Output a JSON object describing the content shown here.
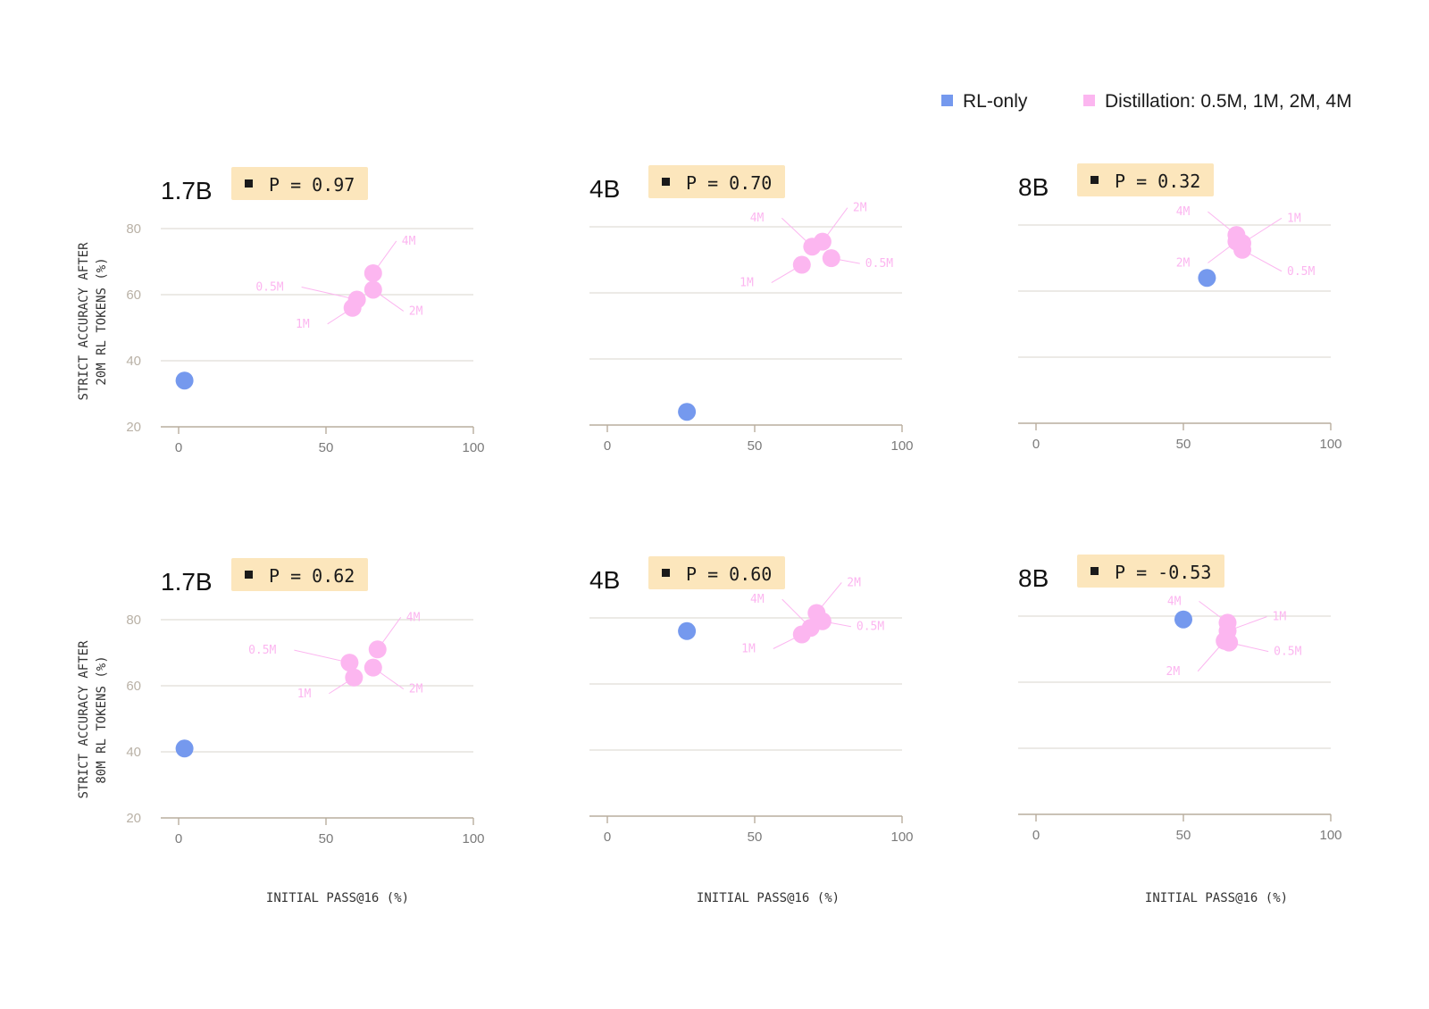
{
  "legend": {
    "placement": "top-right",
    "items": [
      {
        "label": "RL-only",
        "color": "#7599ee"
      },
      {
        "label": "Distillation: 0.5M, 1M, 2M, 4M",
        "color": "#fcb6f0"
      }
    ]
  },
  "colors": {
    "rl": "#7599ee",
    "distill": "#fcb6f0",
    "distill_label": "#fcb6f0",
    "badge_bg": "#fce6bc",
    "grid": "#e0ddd7",
    "axis": "#b8ad9e",
    "tick": "#7a7a7a",
    "ytick": "#b9b1a6"
  },
  "y_axis_labels": [
    {
      "line1": "STRICT ACCURACY AFTER",
      "line2": "20M RL TOKENS (%)"
    },
    {
      "line1": "STRICT ACCURACY AFTER",
      "line2": "80M RL TOKENS (%)"
    }
  ],
  "chart_data": [
    {
      "type": "scatter",
      "title": "1.7B",
      "badge": "P = 0.97",
      "xlim": [
        0,
        100
      ],
      "ylim": [
        20,
        80
      ],
      "xticks": [
        "0",
        "50",
        "100"
      ],
      "yticks": [
        "20",
        "40",
        "60",
        "80"
      ],
      "grid": true,
      "series": [
        {
          "name": "RL-only",
          "points": [
            {
              "x": 2,
              "y": 34
            }
          ]
        },
        {
          "name": "Distillation",
          "points": [
            {
              "x": 59,
              "y": 56,
              "label": "1M"
            },
            {
              "x": 60.5,
              "y": 58.5,
              "label": "0.5M"
            },
            {
              "x": 66,
              "y": 61.5,
              "label": "2M"
            },
            {
              "x": 66,
              "y": 66.5,
              "label": "4M"
            }
          ]
        }
      ]
    },
    {
      "type": "scatter",
      "title": "4B",
      "badge": "P = 0.70",
      "xlim": [
        0,
        100
      ],
      "ylim": [
        20,
        80
      ],
      "xticks": [
        "0",
        "50",
        "100"
      ],
      "yticks": [],
      "grid": true,
      "series": [
        {
          "name": "RL-only",
          "points": [
            {
              "x": 27,
              "y": 24
            }
          ]
        },
        {
          "name": "Distillation",
          "points": [
            {
              "x": 66,
              "y": 68.5,
              "label": "1M"
            },
            {
              "x": 69.5,
              "y": 74,
              "label": "4M"
            },
            {
              "x": 73,
              "y": 75.5,
              "label": "2M"
            },
            {
              "x": 76,
              "y": 70.5,
              "label": "0.5M"
            }
          ]
        }
      ]
    },
    {
      "type": "scatter",
      "title": "8B",
      "badge": "P = 0.32",
      "xlim": [
        0,
        100
      ],
      "ylim": [
        20,
        80
      ],
      "xticks": [
        "0",
        "50",
        "100"
      ],
      "yticks": [],
      "grid": true,
      "series": [
        {
          "name": "RL-only",
          "points": [
            {
              "x": 58,
              "y": 64
            }
          ]
        },
        {
          "name": "Distillation",
          "points": [
            {
              "x": 68,
              "y": 77,
              "label": "4M"
            },
            {
              "x": 68,
              "y": 75,
              "label": "2M"
            },
            {
              "x": 70,
              "y": 74.5,
              "label": "1M"
            },
            {
              "x": 70,
              "y": 72.5,
              "label": "0.5M"
            }
          ]
        }
      ]
    },
    {
      "type": "scatter",
      "title": "1.7B",
      "badge": "P = 0.62",
      "xlim": [
        0,
        100
      ],
      "ylim": [
        20,
        80
      ],
      "xticks": [
        "0",
        "50",
        "100"
      ],
      "yticks": [
        "20",
        "40",
        "60",
        "80"
      ],
      "grid": true,
      "series": [
        {
          "name": "RL-only",
          "points": [
            {
              "x": 2,
              "y": 41
            }
          ]
        },
        {
          "name": "Distillation",
          "points": [
            {
              "x": 58,
              "y": 67,
              "label": "0.5M"
            },
            {
              "x": 59.5,
              "y": 62.5,
              "label": "1M"
            },
            {
              "x": 66,
              "y": 65.5,
              "label": "2M"
            },
            {
              "x": 67.5,
              "y": 71,
              "label": "4M"
            }
          ]
        }
      ]
    },
    {
      "type": "scatter",
      "title": "4B",
      "badge": "P = 0.60",
      "xlim": [
        0,
        100
      ],
      "ylim": [
        20,
        80
      ],
      "xticks": [
        "0",
        "50",
        "100"
      ],
      "yticks": [],
      "grid": true,
      "series": [
        {
          "name": "RL-only",
          "points": [
            {
              "x": 27,
              "y": 76
            }
          ]
        },
        {
          "name": "Distillation",
          "points": [
            {
              "x": 66,
              "y": 75,
              "label": "1M"
            },
            {
              "x": 69,
              "y": 77,
              "label": "4M"
            },
            {
              "x": 71,
              "y": 81.5,
              "label": "2M"
            },
            {
              "x": 73,
              "y": 79,
              "label": "0.5M"
            }
          ]
        }
      ]
    },
    {
      "type": "scatter",
      "title": "8B",
      "badge": "P = -0.53",
      "xlim": [
        0,
        100
      ],
      "ylim": [
        20,
        80
      ],
      "xticks": [
        "0",
        "50",
        "100"
      ],
      "yticks": [],
      "grid": true,
      "series": [
        {
          "name": "RL-only",
          "points": [
            {
              "x": 50,
              "y": 79
            }
          ]
        },
        {
          "name": "Distillation",
          "points": [
            {
              "x": 65,
              "y": 78,
              "label": "4M"
            },
            {
              "x": 65,
              "y": 75.5,
              "label": "1M"
            },
            {
              "x": 65.5,
              "y": 72,
              "label": "0.5M"
            },
            {
              "x": 64,
              "y": 72.5,
              "label": "2M"
            }
          ]
        }
      ]
    }
  ],
  "x_axis_labels": [
    "INITIAL PASS@16 (%)",
    "INITIAL PASS@16 (%)",
    "INITIAL PASS@16 (%)"
  ]
}
